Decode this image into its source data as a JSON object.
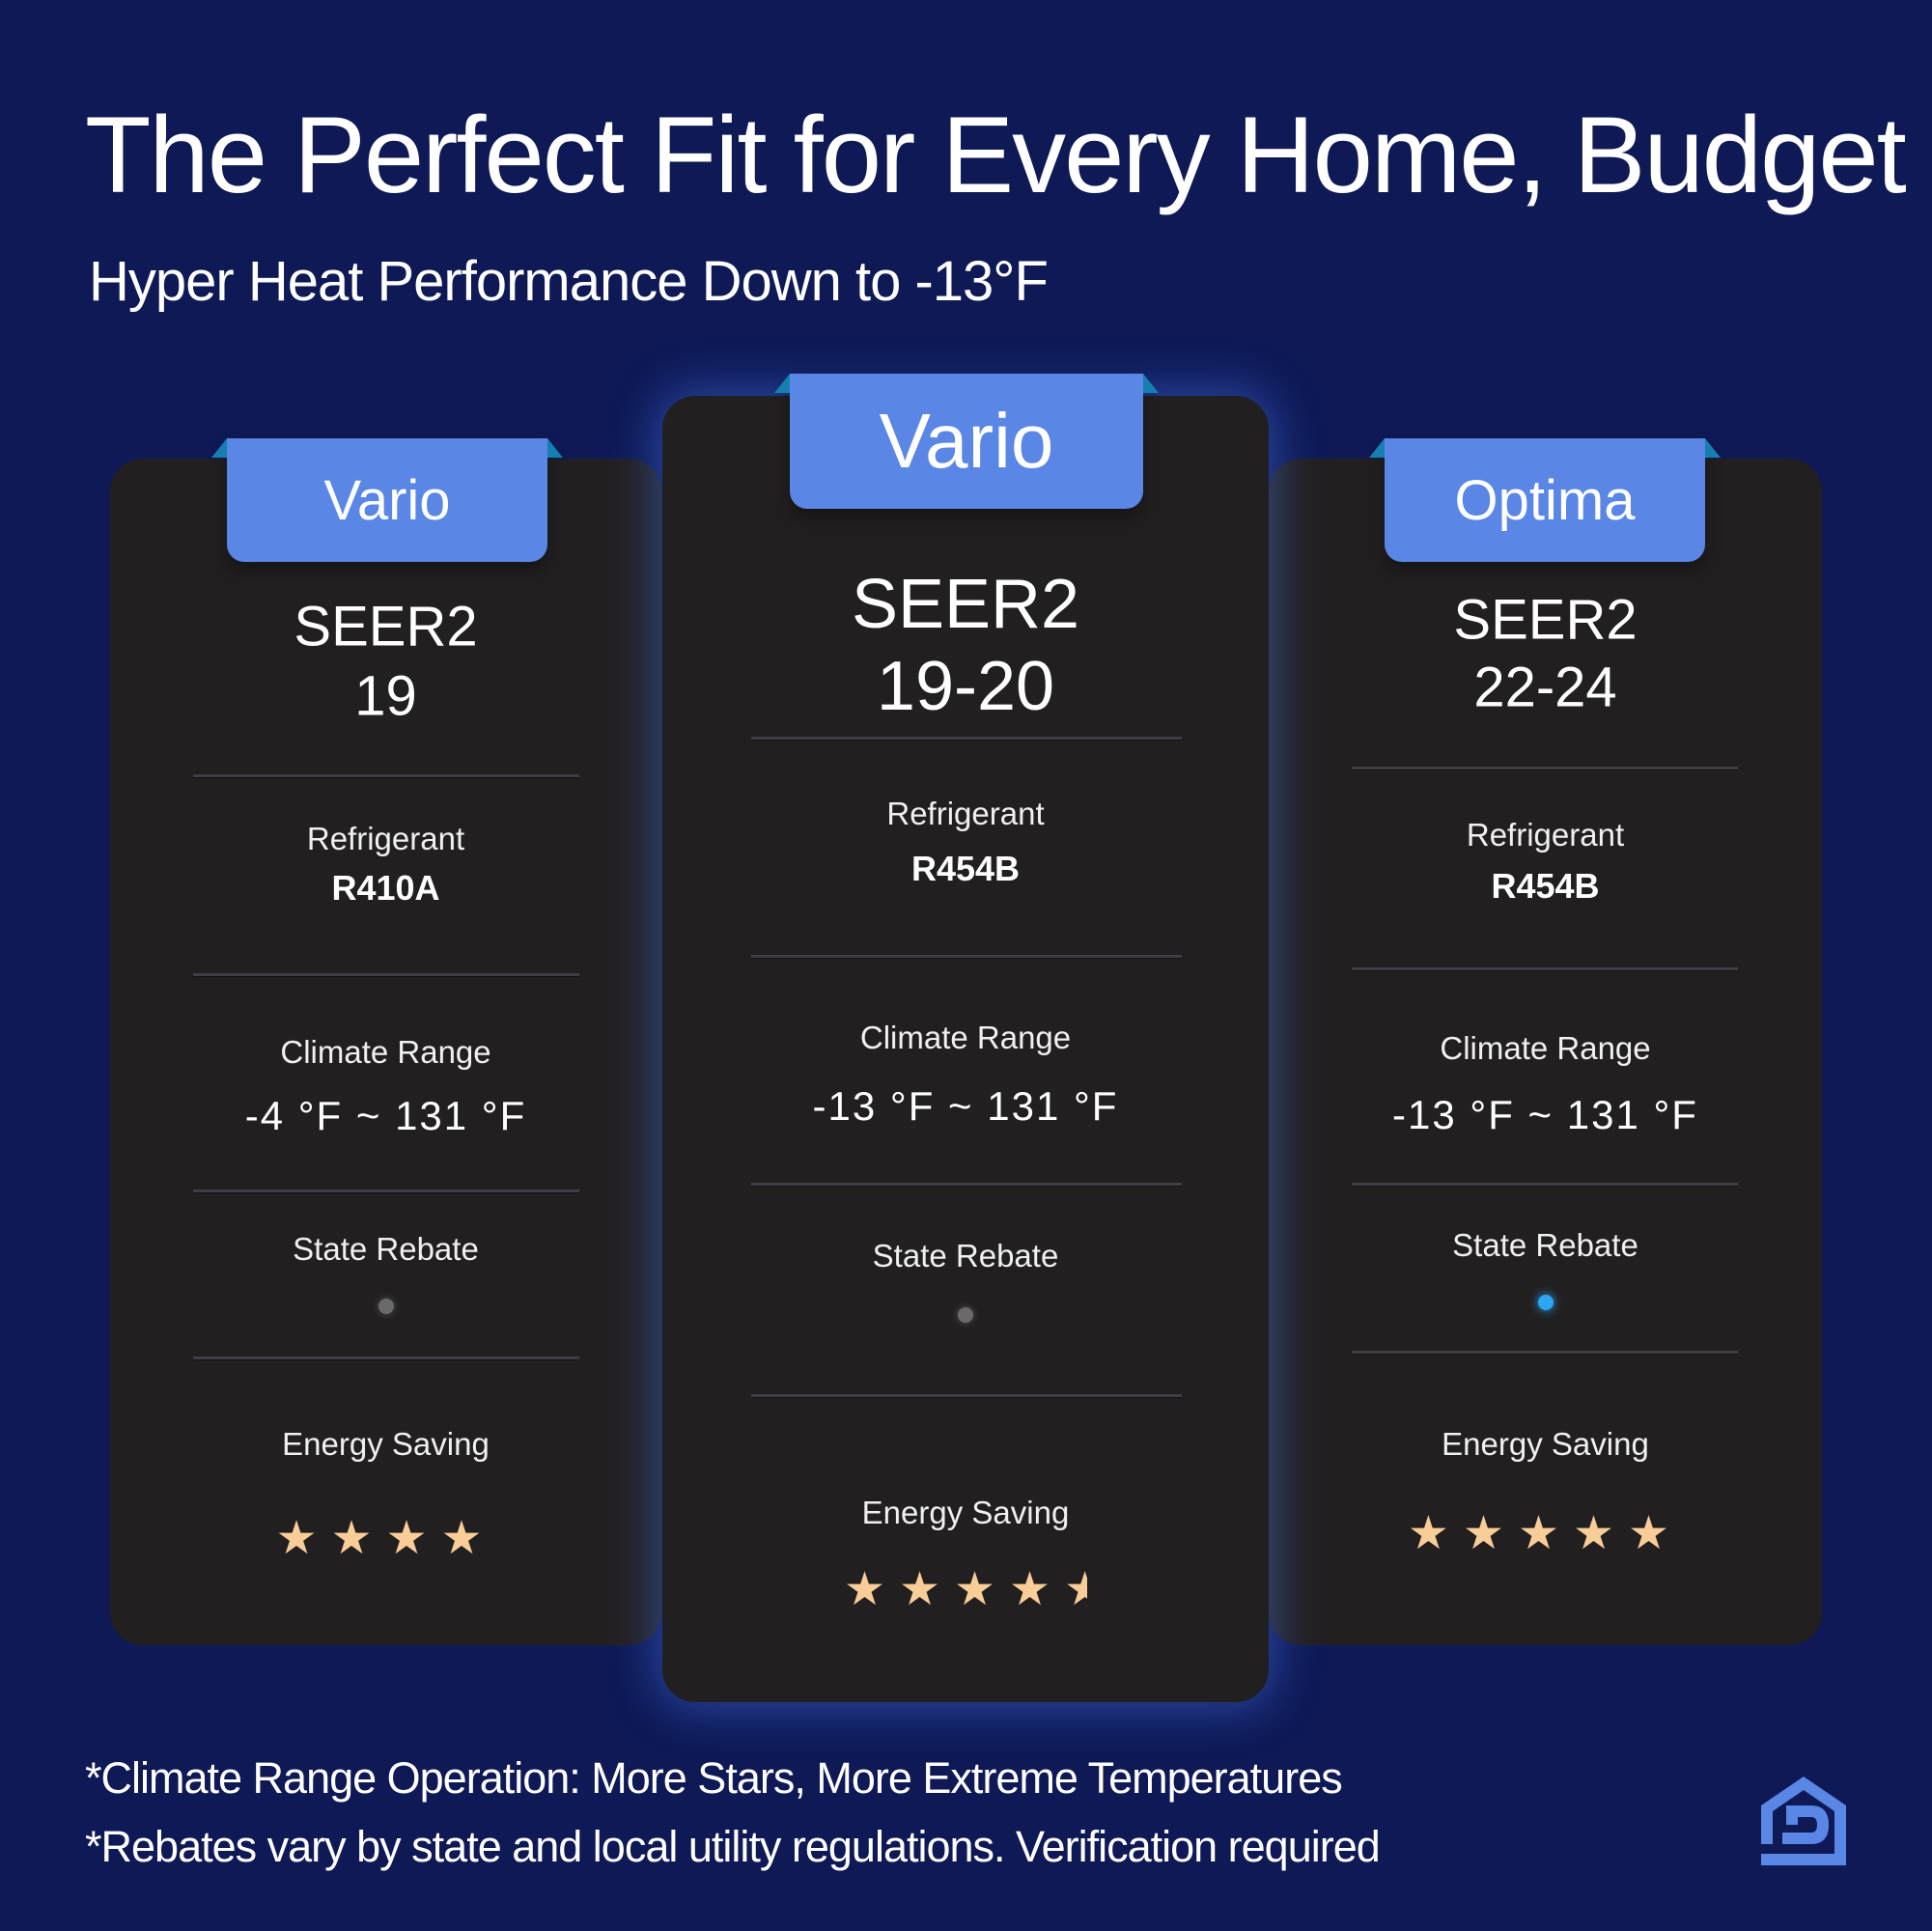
{
  "header": {
    "title": "The Perfect Fit for Every Home, Budget",
    "subtitle": "Hyper Heat Performance Down to -13°F"
  },
  "cards": [
    {
      "name": "Vario",
      "seer_label": "SEER2",
      "seer_value": "19",
      "refrigerant_label": "Refrigerant",
      "refrigerant": "R410A",
      "climate_label": "Climate Range",
      "climate_range": "-4 °F ~ 131 °F",
      "rebate_label": "State Rebate",
      "rebate_status": "inactive",
      "energy_label": "Energy Saving",
      "energy_stars": 4
    },
    {
      "name": "Vario",
      "seer_label": "SEER2",
      "seer_value": "19-20",
      "refrigerant_label": "Refrigerant",
      "refrigerant": "R454B",
      "climate_label": "Climate Range",
      "climate_range": "-13 °F ~ 131 °F",
      "rebate_label": "State Rebate",
      "rebate_status": "inactive",
      "energy_label": "Energy Saving",
      "energy_stars": 4.5
    },
    {
      "name": "Optima",
      "seer_label": "SEER2",
      "seer_value": "22-24",
      "refrigerant_label": "Refrigerant",
      "refrigerant": "R454B",
      "climate_label": "Climate Range",
      "climate_range": "-13 °F ~ 131 °F",
      "rebate_label": "State Rebate",
      "rebate_status": "active",
      "energy_label": "Energy Saving",
      "energy_stars": 5
    }
  ],
  "footer": {
    "note1": "*Climate Range Operation: More Stars, More Extreme Temperatures",
    "note2": "*Rebates vary by state and local utility regulations. Verification required"
  },
  "colors": {
    "background": "#0e1956",
    "card": "#221f20",
    "tab": "#5a86e6",
    "star": "#f8cd98",
    "rebate_active": "#2aa6f2",
    "rebate_inactive": "#6a6a6a"
  },
  "logo": {
    "icon": "house-d-logo-icon"
  }
}
